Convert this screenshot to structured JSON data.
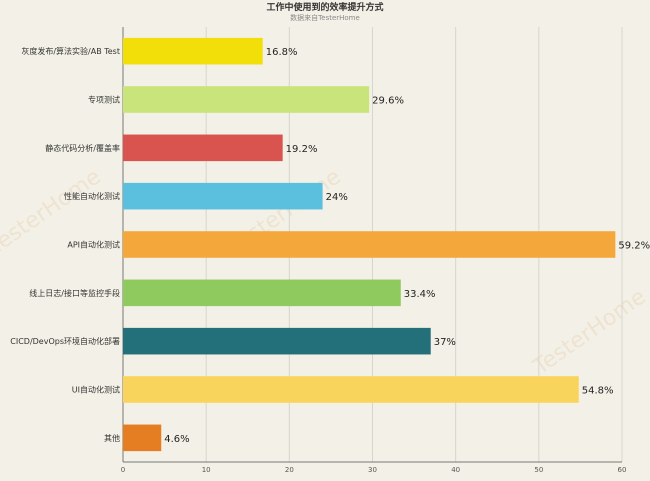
{
  "chart_data": {
    "type": "bar",
    "orientation": "horizontal",
    "title": "工作中使用到的效率提升方式",
    "subtitle": "数据来自TesterHome",
    "categories": [
      "灰度发布/算法实验/AB Test",
      "专项测试",
      "静态代码分析/覆盖率",
      "性能自动化测试",
      "API自动化测试",
      "线上日志/接口等监控手段",
      "CICD/DevOps环境自动化部署",
      "UI自动化测试",
      "其他"
    ],
    "values": [
      16.8,
      29.6,
      19.2,
      24,
      59.2,
      33.4,
      37,
      54.8,
      4.6
    ],
    "value_labels": [
      "16.8%",
      "29.6%",
      "19.2%",
      "24%",
      "59.2%",
      "33.4%",
      "37%",
      "54.8%",
      "4.6%"
    ],
    "colors": [
      "#f2df0a",
      "#c9e47a",
      "#d9534f",
      "#5bc0de",
      "#f4a73b",
      "#8fca5e",
      "#236f7a",
      "#f9d45c",
      "#e57e22"
    ],
    "xlim": [
      0,
      60
    ],
    "xticks": [
      0,
      10,
      20,
      30,
      40,
      50,
      60
    ],
    "grid": true,
    "xlabel": "",
    "ylabel": ""
  },
  "watermark": "TesterHome"
}
